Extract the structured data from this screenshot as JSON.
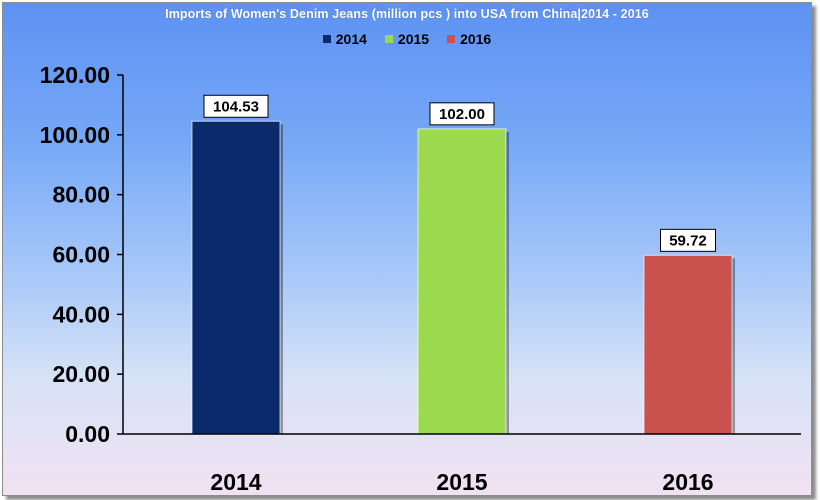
{
  "chart_data": {
    "type": "bar",
    "title": "Imports of Women's Denim Jeans (million pcs ) into USA from China|2014 - 2016",
    "categories": [
      "2014",
      "2015",
      "2016"
    ],
    "series": [
      {
        "name": "2014",
        "values": [
          104.53,
          null,
          null
        ],
        "color": "#0b2a6b"
      },
      {
        "name": "2015",
        "values": [
          null,
          102.0,
          null
        ],
        "color": "#9bd94f"
      },
      {
        "name": "2016",
        "values": [
          null,
          null,
          59.72
        ],
        "color": "#c9524f"
      }
    ],
    "values": [
      104.53,
      102.0,
      59.72
    ],
    "data_labels": [
      "104.53",
      "102.00",
      "59.72"
    ],
    "bar_colors": [
      "#0b2a6b",
      "#9bd94f",
      "#c9524f"
    ],
    "ylim": [
      0,
      120
    ],
    "yticks": [
      0,
      20,
      40,
      60,
      80,
      100,
      120
    ],
    "ytick_labels": [
      "0.00",
      "20.00",
      "40.00",
      "60.00",
      "80.00",
      "100.00",
      "120.00"
    ],
    "xlabel": "",
    "ylabel": "",
    "legend_position": "top-center",
    "grid": false
  }
}
